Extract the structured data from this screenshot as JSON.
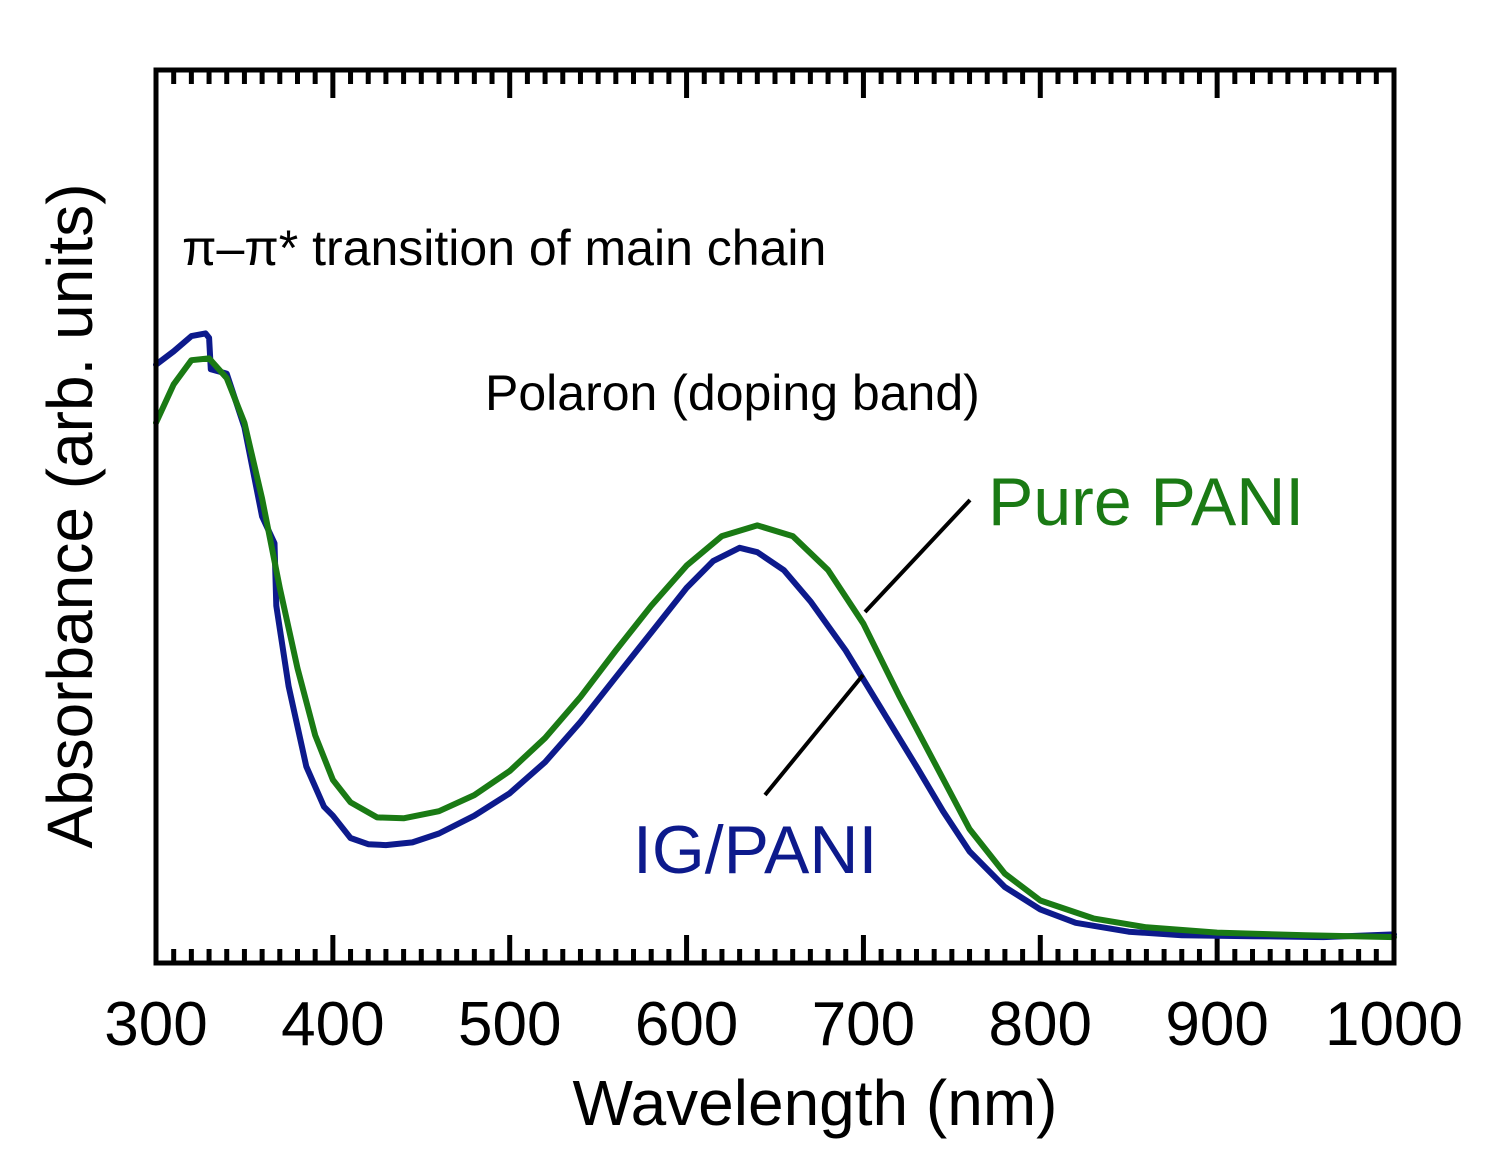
{
  "chart_data": {
    "type": "line",
    "xlabel": "Wavelength (nm)",
    "ylabel": "Absorbance (arb. units)",
    "xlim": [
      300,
      1000
    ],
    "ylim": [
      0,
      1
    ],
    "x_ticks": [
      300,
      400,
      500,
      600,
      700,
      800,
      900,
      1000
    ],
    "y_tick_labels": false,
    "grid": false,
    "legend": "inline labels",
    "series": [
      {
        "name": "IG/PANI",
        "color": "#0d1a8c",
        "points": [
          [
            300,
            0.67
          ],
          [
            310,
            0.685
          ],
          [
            320,
            0.702
          ],
          [
            328,
            0.705
          ],
          [
            330,
            0.7
          ],
          [
            331,
            0.665
          ],
          [
            340,
            0.66
          ],
          [
            350,
            0.6
          ],
          [
            360,
            0.5
          ],
          [
            367,
            0.47
          ],
          [
            368,
            0.4
          ],
          [
            375,
            0.31
          ],
          [
            385,
            0.22
          ],
          [
            395,
            0.175
          ],
          [
            400,
            0.165
          ],
          [
            410,
            0.14
          ],
          [
            420,
            0.133
          ],
          [
            430,
            0.132
          ],
          [
            445,
            0.135
          ],
          [
            460,
            0.145
          ],
          [
            480,
            0.165
          ],
          [
            500,
            0.19
          ],
          [
            520,
            0.225
          ],
          [
            540,
            0.27
          ],
          [
            560,
            0.32
          ],
          [
            580,
            0.37
          ],
          [
            600,
            0.42
          ],
          [
            615,
            0.45
          ],
          [
            630,
            0.465
          ],
          [
            640,
            0.46
          ],
          [
            655,
            0.44
          ],
          [
            670,
            0.405
          ],
          [
            690,
            0.35
          ],
          [
            710,
            0.285
          ],
          [
            730,
            0.22
          ],
          [
            745,
            0.17
          ],
          [
            760,
            0.125
          ],
          [
            780,
            0.085
          ],
          [
            800,
            0.06
          ],
          [
            820,
            0.045
          ],
          [
            850,
            0.035
          ],
          [
            880,
            0.031
          ],
          [
            920,
            0.03
          ],
          [
            960,
            0.029
          ],
          [
            1000,
            0.032
          ]
        ]
      },
      {
        "name": "Pure PANI",
        "color": "#1a7a14",
        "points": [
          [
            300,
            0.605
          ],
          [
            310,
            0.648
          ],
          [
            320,
            0.675
          ],
          [
            330,
            0.677
          ],
          [
            340,
            0.655
          ],
          [
            350,
            0.605
          ],
          [
            360,
            0.52
          ],
          [
            370,
            0.42
          ],
          [
            380,
            0.33
          ],
          [
            390,
            0.255
          ],
          [
            400,
            0.205
          ],
          [
            410,
            0.18
          ],
          [
            425,
            0.163
          ],
          [
            440,
            0.162
          ],
          [
            460,
            0.17
          ],
          [
            480,
            0.188
          ],
          [
            500,
            0.215
          ],
          [
            520,
            0.252
          ],
          [
            540,
            0.298
          ],
          [
            560,
            0.35
          ],
          [
            580,
            0.4
          ],
          [
            600,
            0.445
          ],
          [
            620,
            0.478
          ],
          [
            640,
            0.49
          ],
          [
            660,
            0.478
          ],
          [
            680,
            0.44
          ],
          [
            700,
            0.38
          ],
          [
            720,
            0.3
          ],
          [
            740,
            0.225
          ],
          [
            760,
            0.15
          ],
          [
            780,
            0.1
          ],
          [
            800,
            0.07
          ],
          [
            830,
            0.05
          ],
          [
            860,
            0.04
          ],
          [
            900,
            0.034
          ],
          [
            950,
            0.031
          ],
          [
            1000,
            0.029
          ]
        ]
      }
    ],
    "annotations": [
      {
        "text": "π–π* transition of main chain",
        "x": 330,
        "y": 0.79
      },
      {
        "text": "Polaron (doping band)",
        "x": 630,
        "y": 0.635
      }
    ]
  }
}
